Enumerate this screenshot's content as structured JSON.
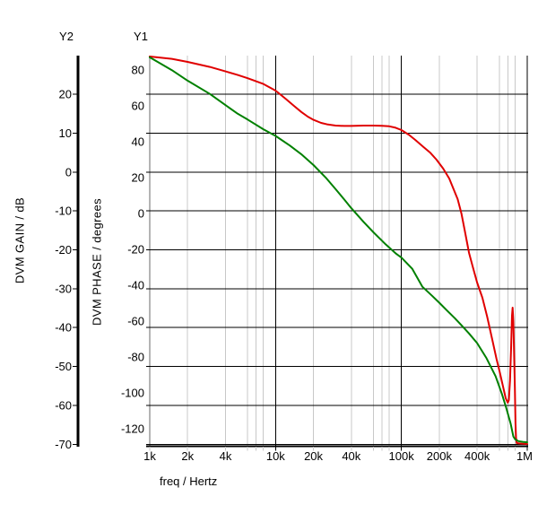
{
  "chart_data": {
    "type": "line",
    "title": "",
    "x_axis": {
      "label": "freq / Hertz",
      "scale": "log",
      "min": 1000,
      "max": 1000000,
      "tick_labels": [
        "1k",
        "2k",
        "4k",
        "10k",
        "20k",
        "40k",
        "100k",
        "200k",
        "400k",
        "1M"
      ],
      "tick_values": [
        1000,
        2000,
        4000,
        10000,
        20000,
        40000,
        100000,
        200000,
        400000,
        1000000
      ],
      "major_tick_values": [
        10000,
        100000,
        1000000
      ],
      "minor_multipliers": [
        2,
        4,
        6,
        7,
        8
      ]
    },
    "y2_axis": {
      "name": "Y2",
      "label": "DVM GAIN / dB",
      "min": -70,
      "max": 30,
      "ticks": [
        20,
        10,
        0,
        -10,
        -20,
        -30,
        -40,
        -50,
        -60,
        -70
      ],
      "grid": true
    },
    "y1_axis": {
      "name": "Y1",
      "label": "DVM PHASE / degrees",
      "min": -130,
      "max": 88,
      "ticks": [
        80,
        60,
        40,
        20,
        0,
        -20,
        -40,
        -60,
        -80,
        -100,
        -120
      ],
      "grid": false
    },
    "legend_position": "none",
    "series": [
      {
        "name": "DVM PHASE",
        "axis": "y1",
        "color": "#e00000",
        "points": [
          [
            1000,
            87.5
          ],
          [
            1500,
            86.2
          ],
          [
            2000,
            84.5
          ],
          [
            3000,
            81.7
          ],
          [
            4000,
            79.2
          ],
          [
            5000,
            77.2
          ],
          [
            6000,
            75.4
          ],
          [
            8000,
            72.2
          ],
          [
            10000,
            68.5
          ],
          [
            12000,
            64
          ],
          [
            14000,
            60
          ],
          [
            16000,
            56.6
          ],
          [
            18000,
            54
          ],
          [
            20000,
            52.2
          ],
          [
            23000,
            50.5
          ],
          [
            26000,
            49.6
          ],
          [
            30000,
            49
          ],
          [
            35000,
            48.8
          ],
          [
            40000,
            48.8
          ],
          [
            50000,
            49
          ],
          [
            60000,
            49
          ],
          [
            70000,
            48.9
          ],
          [
            80000,
            48.6
          ],
          [
            90000,
            47.8
          ],
          [
            100000,
            46.5
          ],
          [
            115000,
            43.8
          ],
          [
            130000,
            40.8
          ],
          [
            150000,
            37
          ],
          [
            170000,
            33.8
          ],
          [
            190000,
            30
          ],
          [
            215000,
            25
          ],
          [
            240000,
            19.5
          ],
          [
            260000,
            13.5
          ],
          [
            280000,
            8
          ],
          [
            300000,
            0
          ],
          [
            320000,
            -10
          ],
          [
            345000,
            -22
          ],
          [
            370000,
            -30
          ],
          [
            400000,
            -38.5
          ],
          [
            440000,
            -47
          ],
          [
            480000,
            -57.5
          ],
          [
            530000,
            -71
          ],
          [
            570000,
            -81
          ],
          [
            600000,
            -87.5
          ],
          [
            640000,
            -96
          ],
          [
            675000,
            -103
          ],
          [
            700000,
            -105.5
          ],
          [
            715000,
            -104
          ],
          [
            730000,
            -93
          ],
          [
            745000,
            -75
          ],
          [
            757000,
            -57
          ],
          [
            765000,
            -52.5
          ],
          [
            775000,
            -60
          ],
          [
            785000,
            -75
          ],
          [
            797000,
            -97
          ],
          [
            807000,
            -117
          ],
          [
            815000,
            -125
          ],
          [
            825000,
            -128
          ],
          [
            900000,
            -128.3
          ],
          [
            1000000,
            -128.5
          ]
        ]
      },
      {
        "name": "DVM GAIN",
        "axis": "y2",
        "color": "#008000",
        "points": [
          [
            1000,
            29.5
          ],
          [
            1500,
            26.2
          ],
          [
            2000,
            23.5
          ],
          [
            3000,
            20.1
          ],
          [
            4000,
            17.2
          ],
          [
            5000,
            15
          ],
          [
            6000,
            13.5
          ],
          [
            8000,
            11
          ],
          [
            10000,
            9.3
          ],
          [
            13000,
            6.8
          ],
          [
            16000,
            4.6
          ],
          [
            20000,
            1.8
          ],
          [
            25000,
            -1.4
          ],
          [
            30000,
            -4.4
          ],
          [
            35000,
            -7
          ],
          [
            40000,
            -9.3
          ],
          [
            50000,
            -12.8
          ],
          [
            60000,
            -15.5
          ],
          [
            75000,
            -18.6
          ],
          [
            90000,
            -20.9
          ],
          [
            100000,
            -22
          ],
          [
            122000,
            -24.9
          ],
          [
            147000,
            -29.5
          ],
          [
            175000,
            -31.8
          ],
          [
            200000,
            -33.6
          ],
          [
            230000,
            -35.6
          ],
          [
            266000,
            -37.6
          ],
          [
            300000,
            -39.4
          ],
          [
            344000,
            -41.5
          ],
          [
            400000,
            -44
          ],
          [
            475000,
            -47.9
          ],
          [
            560000,
            -52.5
          ],
          [
            630000,
            -57.1
          ],
          [
            680000,
            -60.6
          ],
          [
            738000,
            -64.7
          ],
          [
            775000,
            -68
          ],
          [
            800000,
            -68.7
          ],
          [
            850000,
            -69.2
          ],
          [
            920000,
            -69.4
          ],
          [
            1000000,
            -69.5
          ]
        ]
      }
    ]
  },
  "colors": {
    "background": "#ffffff",
    "major_grid": "#000000",
    "minor_grid": "#c8c8c8",
    "y1_axis_line": "#b4b4b4",
    "text": "#000000",
    "phase_curve": "#e00000",
    "gain_curve": "#008000"
  }
}
